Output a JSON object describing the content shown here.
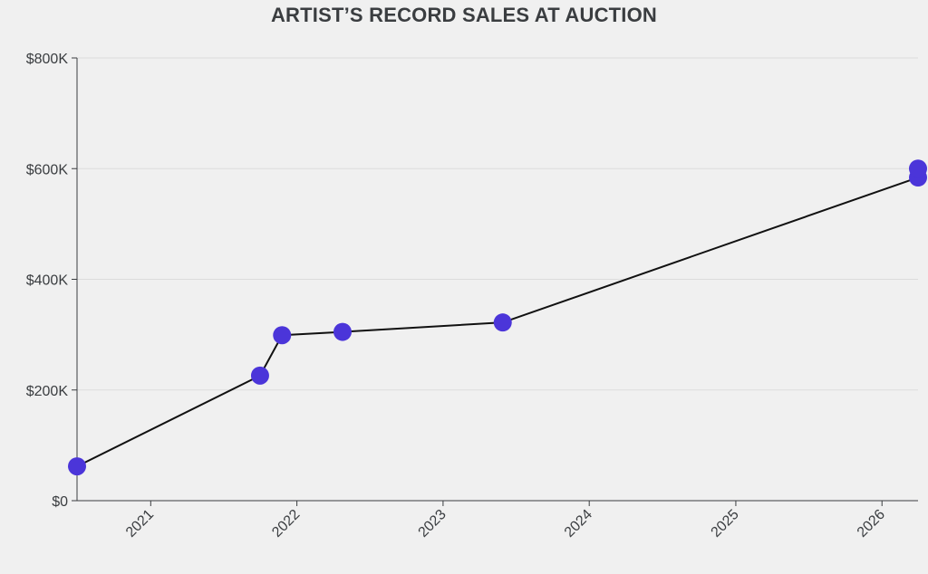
{
  "chart_data": {
    "type": "line",
    "title": "ARTIST’S RECORD SALES AT AUCTION",
    "xlabel": "",
    "ylabel": "",
    "x_type": "date",
    "xlim": [
      "2020-07-01",
      "2026-04-01"
    ],
    "ylim": [
      0,
      800000
    ],
    "x_ticks": [
      {
        "date": "2021-01-01",
        "label": "2021"
      },
      {
        "date": "2022-01-01",
        "label": "2022"
      },
      {
        "date": "2023-01-01",
        "label": "2023"
      },
      {
        "date": "2024-01-01",
        "label": "2024"
      },
      {
        "date": "2025-01-01",
        "label": "2025"
      },
      {
        "date": "2026-01-01",
        "label": "2026"
      }
    ],
    "y_ticks": [
      {
        "value": 0,
        "label": "$0"
      },
      {
        "value": 200000,
        "label": "$200K"
      },
      {
        "value": 400000,
        "label": "$400K"
      },
      {
        "value": 600000,
        "label": "$600K"
      },
      {
        "value": 800000,
        "label": "$800K"
      }
    ],
    "grid": true,
    "colors": {
      "point": "#4b35d9",
      "line": "#111111",
      "grid": "#dcdcdc",
      "axis": "#3a3d40"
    },
    "series": [
      {
        "x": [
          "2020-07-01",
          "2021-10-01",
          "2021-11-25",
          "2022-04-25",
          "2023-05-30",
          "2026-04-01",
          "2026-04-01"
        ],
        "y": [
          62000,
          226000,
          299000,
          305000,
          322000,
          584000,
          600000
        ]
      }
    ]
  }
}
